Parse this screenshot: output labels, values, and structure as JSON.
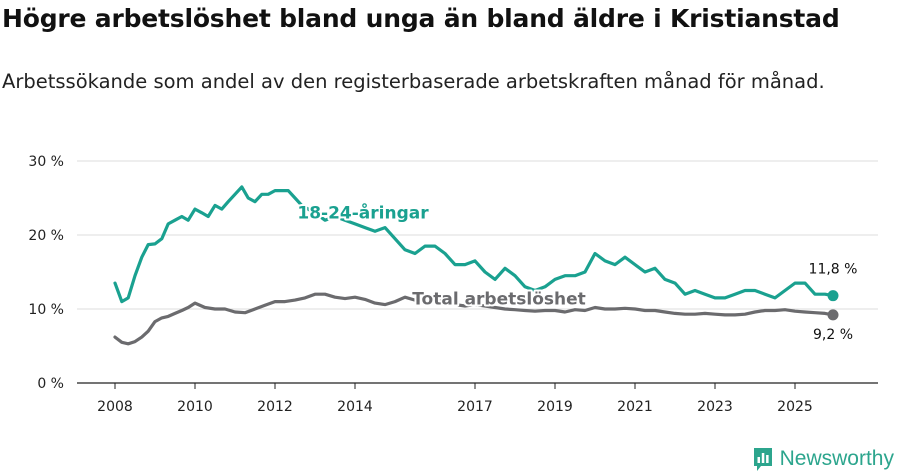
{
  "title": "Högre arbetslöshet bland unga än bland äldre i Kristianstad",
  "subtitle": "Arbetssökande som andel av den registerbaserade arbetskraften månad för månad.",
  "brand": "Newsworthy",
  "colors": {
    "youth": "#1aa190",
    "total": "#6b6b6e",
    "grid": "#dddddd",
    "axis": "#222222"
  },
  "chart_data": {
    "type": "line",
    "title": "Högre arbetslöshet bland unga än bland äldre i Kristianstad",
    "subtitle": "Arbetssökande som andel av den registerbaserade arbetskraften månad för månad.",
    "xlabel": "",
    "ylabel": "",
    "x_range": [
      2008.0,
      2026.2
    ],
    "ylim": [
      0,
      30
    ],
    "yticks": [
      0,
      10,
      20,
      30
    ],
    "ytick_labels": [
      "0 %",
      "10 %",
      "20 %",
      "30 %"
    ],
    "xticks": [
      2008,
      2010,
      2012,
      2014,
      2017,
      2019,
      2021,
      2023,
      2025
    ],
    "xtick_labels": [
      "2008",
      "2010",
      "2012",
      "2014",
      "2017",
      "2019",
      "2021",
      "2023",
      "2025"
    ],
    "grid": true,
    "series": [
      {
        "name": "18-24-åringar",
        "label": "18-24-åringar",
        "end_label": "11,8 %",
        "x": [
          2008.0,
          2008.17,
          2008.33,
          2008.5,
          2008.67,
          2008.83,
          2009.0,
          2009.17,
          2009.33,
          2009.5,
          2009.67,
          2009.83,
          2010.0,
          2010.17,
          2010.33,
          2010.5,
          2010.67,
          2010.83,
          2011.0,
          2011.17,
          2011.33,
          2011.5,
          2011.67,
          2011.83,
          2012.0,
          2012.17,
          2012.33,
          2012.5,
          2012.67,
          2012.83,
          2013.0,
          2013.25,
          2013.5,
          2013.75,
          2014.0,
          2014.25,
          2014.5,
          2014.75,
          2015.0,
          2015.25,
          2015.5,
          2015.75,
          2016.0,
          2016.25,
          2016.5,
          2016.75,
          2017.0,
          2017.25,
          2017.5,
          2017.75,
          2018.0,
          2018.25,
          2018.5,
          2018.75,
          2019.0,
          2019.25,
          2019.5,
          2019.75,
          2020.0,
          2020.25,
          2020.5,
          2020.75,
          2021.0,
          2021.25,
          2021.5,
          2021.75,
          2022.0,
          2022.25,
          2022.5,
          2022.75,
          2023.0,
          2023.25,
          2023.5,
          2023.75,
          2024.0,
          2024.25,
          2024.5,
          2024.75,
          2025.0,
          2025.25,
          2025.5,
          2025.75,
          2025.95
        ],
        "values": [
          13.5,
          11.0,
          11.5,
          14.5,
          17.0,
          18.7,
          18.8,
          19.5,
          21.5,
          22.0,
          22.5,
          22.0,
          23.5,
          23.0,
          22.5,
          24.0,
          23.5,
          24.5,
          25.5,
          26.5,
          25.0,
          24.5,
          25.5,
          25.5,
          26.0,
          26.0,
          26.0,
          25.0,
          24.0,
          23.5,
          23.0,
          22.0,
          22.5,
          22.0,
          21.5,
          21.0,
          20.5,
          21.0,
          19.5,
          18.0,
          17.5,
          18.5,
          18.5,
          17.5,
          16.0,
          16.0,
          16.5,
          15.0,
          14.0,
          15.5,
          14.5,
          13.0,
          12.5,
          13.0,
          14.0,
          14.5,
          14.5,
          15.0,
          17.5,
          16.5,
          16.0,
          17.0,
          16.0,
          15.0,
          15.5,
          14.0,
          13.5,
          12.0,
          12.5,
          12.0,
          11.5,
          11.5,
          12.0,
          12.5,
          12.5,
          12.0,
          11.5,
          12.5,
          13.5,
          13.5,
          12.0,
          12.0,
          11.8
        ]
      },
      {
        "name": "Total arbetslöshet",
        "label": "Total arbetslöshet",
        "end_label": "9,2 %",
        "x": [
          2008.0,
          2008.17,
          2008.33,
          2008.5,
          2008.67,
          2008.83,
          2009.0,
          2009.17,
          2009.33,
          2009.5,
          2009.67,
          2009.83,
          2010.0,
          2010.25,
          2010.5,
          2010.75,
          2011.0,
          2011.25,
          2011.5,
          2011.75,
          2012.0,
          2012.25,
          2012.5,
          2012.75,
          2013.0,
          2013.25,
          2013.5,
          2013.75,
          2014.0,
          2014.25,
          2014.5,
          2014.75,
          2015.0,
          2015.25,
          2015.5,
          2015.75,
          2016.0,
          2016.25,
          2016.5,
          2016.75,
          2017.0,
          2017.25,
          2017.5,
          2017.75,
          2018.0,
          2018.25,
          2018.5,
          2018.75,
          2019.0,
          2019.25,
          2019.5,
          2019.75,
          2020.0,
          2020.25,
          2020.5,
          2020.75,
          2021.0,
          2021.25,
          2021.5,
          2021.75,
          2022.0,
          2022.25,
          2022.5,
          2022.75,
          2023.0,
          2023.25,
          2023.5,
          2023.75,
          2024.0,
          2024.25,
          2024.5,
          2024.75,
          2025.0,
          2025.25,
          2025.5,
          2025.75,
          2025.95
        ],
        "values": [
          6.2,
          5.5,
          5.3,
          5.6,
          6.2,
          7.0,
          8.3,
          8.8,
          9.0,
          9.4,
          9.8,
          10.2,
          10.8,
          10.2,
          10.0,
          10.0,
          9.6,
          9.5,
          10.0,
          10.5,
          11.0,
          11.0,
          11.2,
          11.5,
          12.0,
          12.0,
          11.6,
          11.4,
          11.6,
          11.3,
          10.8,
          10.6,
          11.0,
          11.6,
          11.2,
          11.0,
          11.2,
          11.0,
          10.6,
          10.4,
          10.6,
          10.4,
          10.2,
          10.0,
          9.9,
          9.8,
          9.7,
          9.8,
          9.8,
          9.6,
          9.9,
          9.8,
          10.2,
          10.0,
          10.0,
          10.1,
          10.0,
          9.8,
          9.8,
          9.6,
          9.4,
          9.3,
          9.3,
          9.4,
          9.3,
          9.2,
          9.2,
          9.3,
          9.6,
          9.8,
          9.8,
          9.9,
          9.7,
          9.6,
          9.5,
          9.4,
          9.2
        ]
      }
    ]
  }
}
